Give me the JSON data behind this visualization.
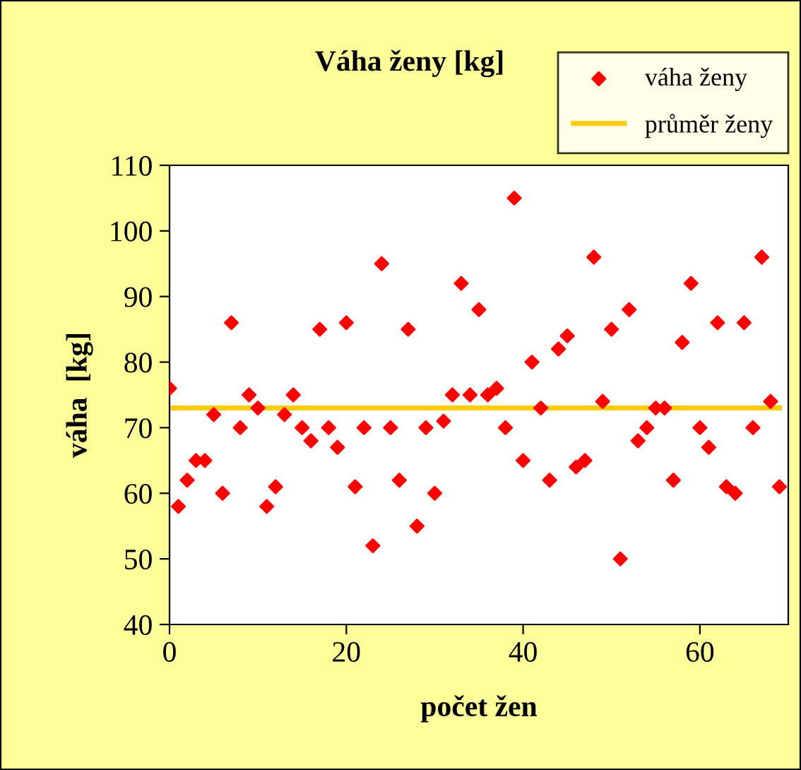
{
  "chart_data": {
    "type": "scatter",
    "title": "Váha ženy [kg]",
    "xlabel": "počet žen",
    "ylabel": "váha  [kg]",
    "xlim": [
      0,
      70
    ],
    "xticks": [
      0,
      20,
      40,
      60
    ],
    "ylim": [
      40,
      110
    ],
    "yticks": [
      40,
      50,
      60,
      70,
      80,
      90,
      100,
      110
    ],
    "grid": false,
    "legend": "top right",
    "series": [
      {
        "name": "váha ženy",
        "marker": "diamond",
        "color": "#ff0000",
        "x": [
          0,
          1,
          2,
          3,
          4,
          5,
          6,
          7,
          8,
          9,
          10,
          11,
          12,
          13,
          14,
          15,
          16,
          17,
          18,
          19,
          20,
          21,
          22,
          23,
          24,
          25,
          26,
          27,
          28,
          29,
          30,
          31,
          32,
          33,
          34,
          35,
          36,
          37,
          38,
          39,
          40,
          41,
          42,
          43,
          44,
          45,
          46,
          47,
          48,
          49,
          50,
          51,
          52,
          53,
          54,
          55,
          56,
          57,
          58,
          59,
          60,
          61,
          62,
          63,
          64,
          65,
          66,
          67,
          68,
          69
        ],
        "values": [
          76,
          58,
          62,
          65,
          65,
          72,
          60,
          86,
          70,
          75,
          73,
          58,
          61,
          72,
          75,
          70,
          68,
          85,
          70,
          67,
          86,
          61,
          70,
          52,
          95,
          70,
          62,
          85,
          55,
          70,
          60,
          71,
          75,
          92,
          75,
          88,
          75,
          76,
          70,
          105,
          65,
          80,
          73,
          62,
          82,
          84,
          64,
          65,
          96,
          74,
          85,
          50,
          88,
          68,
          70,
          73,
          73,
          62,
          83,
          92,
          70,
          67,
          86,
          61,
          60,
          86,
          70,
          96,
          74,
          61
        ]
      },
      {
        "name": "průměr ženy",
        "type": "line",
        "marker": "none",
        "color": "#ffcc00",
        "x": [
          0,
          69
        ],
        "values": [
          73,
          73
        ]
      }
    ]
  }
}
